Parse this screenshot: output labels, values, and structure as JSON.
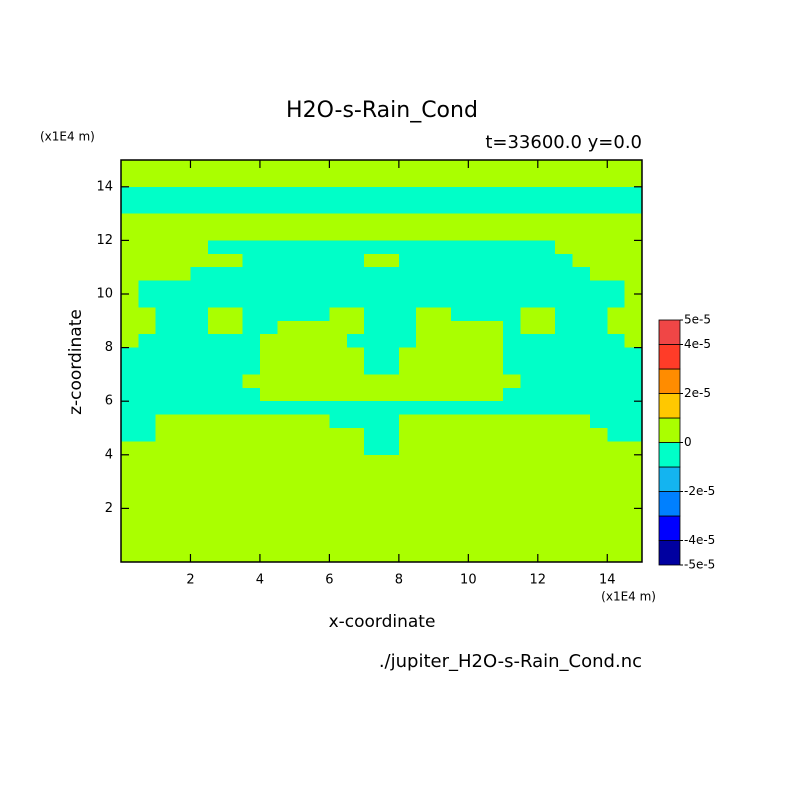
{
  "chart_data": {
    "type": "contour",
    "title": "H2O-s-Rain_Cond",
    "subtitle": "t=33600.0 y=0.0",
    "x_label": "x-coordinate",
    "y_label": "z-coordinate",
    "x_unit": "(x1E4 m)",
    "y_unit": "(x1E4 m)",
    "footer": "./jupiter_H2O-s-Rain_Cond.nc",
    "xlim": [
      0,
      15
    ],
    "ylim": [
      0,
      15
    ],
    "xticks": [
      2,
      4,
      6,
      8,
      10,
      12,
      14
    ],
    "yticks": [
      2,
      4,
      6,
      8,
      10,
      12,
      14
    ],
    "x": [
      0.25,
      0.75,
      1.25,
      1.75,
      2.25,
      2.75,
      3.25,
      3.75,
      4.25,
      4.75,
      5.25,
      5.75,
      6.25,
      6.75,
      7.25,
      7.75,
      8.25,
      8.75,
      9.25,
      9.75,
      10.25,
      10.75,
      11.25,
      11.75,
      12.25,
      12.75,
      13.25,
      13.75,
      14.25,
      14.75
    ],
    "y": [
      14.75,
      14.25,
      13.75,
      13.25,
      12.75,
      12.25,
      11.75,
      11.25,
      10.75,
      10.25,
      9.75,
      9.25,
      8.75,
      8.25,
      7.75,
      7.25,
      6.75,
      6.25,
      5.75,
      5.25,
      4.75,
      4.25,
      3.75,
      3.25,
      2.75,
      2.25,
      1.75,
      1.25,
      0.75,
      0.25
    ],
    "values": [
      [
        5e-06,
        5e-06,
        5e-06,
        5e-06,
        5e-06,
        5e-06,
        5e-06,
        5e-06,
        5e-06,
        5e-06,
        5e-06,
        5e-06,
        5e-06,
        5e-06,
        5e-06,
        5e-06,
        5e-06,
        5e-06,
        5e-06,
        5e-06,
        5e-06,
        5e-06,
        5e-06,
        5e-06,
        5e-06,
        5e-06,
        5e-06,
        5e-06,
        5e-06,
        5e-06
      ],
      [
        5e-06,
        5e-06,
        5e-06,
        5e-06,
        5e-06,
        5e-06,
        5e-06,
        5e-06,
        5e-06,
        5e-06,
        5e-06,
        5e-06,
        5e-06,
        5e-06,
        5e-06,
        5e-06,
        5e-06,
        5e-06,
        5e-06,
        5e-06,
        5e-06,
        5e-06,
        5e-06,
        5e-06,
        5e-06,
        5e-06,
        5e-06,
        5e-06,
        5e-06,
        5e-06
      ],
      [
        -5e-06,
        -5e-06,
        -5e-06,
        -5e-06,
        -5e-06,
        -5e-06,
        -5e-06,
        -5e-06,
        -5e-06,
        -5e-06,
        -5e-06,
        -5e-06,
        -5e-06,
        -5e-06,
        -5e-06,
        -5e-06,
        -5e-06,
        -5e-06,
        -5e-06,
        -5e-06,
        -5e-06,
        -5e-06,
        -5e-06,
        -5e-06,
        -5e-06,
        -5e-06,
        -5e-06,
        -5e-06,
        -5e-06,
        -5e-06
      ],
      [
        -5e-06,
        -5e-06,
        -5e-06,
        -5e-06,
        -5e-06,
        -5e-06,
        -5e-06,
        -5e-06,
        -5e-06,
        -5e-06,
        -5e-06,
        -5e-06,
        -5e-06,
        -5e-06,
        -5e-06,
        -5e-06,
        -5e-06,
        -5e-06,
        -5e-06,
        -5e-06,
        -5e-06,
        -5e-06,
        -5e-06,
        -5e-06,
        -5e-06,
        -5e-06,
        -5e-06,
        -5e-06,
        -5e-06,
        -5e-06
      ],
      [
        5e-06,
        5e-06,
        5e-06,
        5e-06,
        5e-06,
        5e-06,
        5e-06,
        5e-06,
        5e-06,
        5e-06,
        5e-06,
        5e-06,
        5e-06,
        5e-06,
        5e-06,
        5e-06,
        5e-06,
        5e-06,
        5e-06,
        5e-06,
        5e-06,
        5e-06,
        5e-06,
        5e-06,
        5e-06,
        5e-06,
        5e-06,
        5e-06,
        5e-06,
        5e-06
      ],
      [
        5e-06,
        5e-06,
        5e-06,
        5e-06,
        5e-06,
        5e-06,
        5e-06,
        5e-06,
        5e-06,
        5e-06,
        5e-06,
        5e-06,
        5e-06,
        5e-06,
        5e-06,
        5e-06,
        5e-06,
        5e-06,
        5e-06,
        5e-06,
        5e-06,
        5e-06,
        5e-06,
        5e-06,
        5e-06,
        5e-06,
        5e-06,
        5e-06,
        5e-06,
        5e-06
      ],
      [
        5e-06,
        5e-06,
        5e-06,
        5e-06,
        5e-06,
        -5e-06,
        -5e-06,
        -5e-06,
        -5e-06,
        -5e-06,
        -5e-06,
        -5e-06,
        -5e-06,
        -5e-06,
        -5e-06,
        -5e-06,
        -5e-06,
        -5e-06,
        -5e-06,
        -5e-06,
        -5e-06,
        -5e-06,
        -5e-06,
        -5e-06,
        -5e-06,
        5e-06,
        5e-06,
        5e-06,
        5e-06,
        5e-06
      ],
      [
        5e-06,
        5e-06,
        5e-06,
        5e-06,
        5e-06,
        5e-06,
        5e-06,
        -5e-06,
        -5e-06,
        -5e-06,
        -5e-06,
        -5e-06,
        -5e-06,
        -5e-06,
        5e-06,
        5e-06,
        -5e-06,
        -5e-06,
        -5e-06,
        -5e-06,
        -5e-06,
        -5e-06,
        -5e-06,
        -5e-06,
        -5e-06,
        -5e-06,
        5e-06,
        5e-06,
        5e-06,
        5e-06
      ],
      [
        5e-06,
        5e-06,
        5e-06,
        5e-06,
        -5e-06,
        -5e-06,
        -5e-06,
        -5e-06,
        -5e-06,
        -5e-06,
        -5e-06,
        -5e-06,
        -5e-06,
        -5e-06,
        -5e-06,
        -5e-06,
        -5e-06,
        -5e-06,
        -5e-06,
        -5e-06,
        -5e-06,
        -5e-06,
        -5e-06,
        -5e-06,
        -5e-06,
        -5e-06,
        -5e-06,
        5e-06,
        5e-06,
        5e-06
      ],
      [
        5e-06,
        -5e-06,
        -5e-06,
        -5e-06,
        -5e-06,
        -5e-06,
        -5e-06,
        -5e-06,
        -5e-06,
        -5e-06,
        -5e-06,
        -5e-06,
        -5e-06,
        -5e-06,
        -5e-06,
        -5e-06,
        -5e-06,
        -5e-06,
        -5e-06,
        -5e-06,
        -5e-06,
        -5e-06,
        -5e-06,
        -5e-06,
        -5e-06,
        -5e-06,
        -5e-06,
        -5e-06,
        -5e-06,
        5e-06
      ],
      [
        5e-06,
        -5e-06,
        -5e-06,
        -5e-06,
        -5e-06,
        -5e-06,
        -5e-06,
        -5e-06,
        -5e-06,
        -5e-06,
        -5e-06,
        -5e-06,
        -5e-06,
        -5e-06,
        -5e-06,
        -5e-06,
        -5e-06,
        -5e-06,
        -5e-06,
        -5e-06,
        -5e-06,
        -5e-06,
        -5e-06,
        -5e-06,
        -5e-06,
        -5e-06,
        -5e-06,
        -5e-06,
        -5e-06,
        5e-06
      ],
      [
        5e-06,
        5e-06,
        -5e-06,
        -5e-06,
        -5e-06,
        5e-06,
        5e-06,
        -5e-06,
        -5e-06,
        -5e-06,
        -5e-06,
        -5e-06,
        5e-06,
        5e-06,
        -5e-06,
        -5e-06,
        -5e-06,
        5e-06,
        5e-06,
        -5e-06,
        -5e-06,
        -5e-06,
        -5e-06,
        5e-06,
        5e-06,
        -5e-06,
        -5e-06,
        -5e-06,
        5e-06,
        5e-06
      ],
      [
        5e-06,
        5e-06,
        -5e-06,
        -5e-06,
        -5e-06,
        5e-06,
        5e-06,
        -5e-06,
        -5e-06,
        5e-06,
        5e-06,
        5e-06,
        5e-06,
        5e-06,
        -5e-06,
        -5e-06,
        -5e-06,
        5e-06,
        5e-06,
        5e-06,
        5e-06,
        5e-06,
        -5e-06,
        5e-06,
        5e-06,
        -5e-06,
        -5e-06,
        -5e-06,
        5e-06,
        5e-06
      ],
      [
        5e-06,
        -5e-06,
        -5e-06,
        -5e-06,
        -5e-06,
        -5e-06,
        -5e-06,
        -5e-06,
        5e-06,
        5e-06,
        5e-06,
        5e-06,
        5e-06,
        -5e-06,
        -5e-06,
        -5e-06,
        -5e-06,
        5e-06,
        5e-06,
        5e-06,
        5e-06,
        5e-06,
        -5e-06,
        -5e-06,
        -5e-06,
        -5e-06,
        -5e-06,
        -5e-06,
        -5e-06,
        5e-06
      ],
      [
        -5e-06,
        -5e-06,
        -5e-06,
        -5e-06,
        -5e-06,
        -5e-06,
        -5e-06,
        -5e-06,
        5e-06,
        5e-06,
        5e-06,
        5e-06,
        5e-06,
        5e-06,
        -5e-06,
        -5e-06,
        5e-06,
        5e-06,
        5e-06,
        5e-06,
        5e-06,
        5e-06,
        -5e-06,
        -5e-06,
        -5e-06,
        -5e-06,
        -5e-06,
        -5e-06,
        -5e-06,
        -5e-06
      ],
      [
        -5e-06,
        -5e-06,
        -5e-06,
        -5e-06,
        -5e-06,
        -5e-06,
        -5e-06,
        -5e-06,
        5e-06,
        5e-06,
        5e-06,
        5e-06,
        5e-06,
        5e-06,
        -5e-06,
        -5e-06,
        5e-06,
        5e-06,
        5e-06,
        5e-06,
        5e-06,
        5e-06,
        -5e-06,
        -5e-06,
        -5e-06,
        -5e-06,
        -5e-06,
        -5e-06,
        -5e-06,
        -5e-06
      ],
      [
        -5e-06,
        -5e-06,
        -5e-06,
        -5e-06,
        -5e-06,
        -5e-06,
        -5e-06,
        5e-06,
        5e-06,
        5e-06,
        5e-06,
        5e-06,
        5e-06,
        5e-06,
        5e-06,
        5e-06,
        5e-06,
        5e-06,
        5e-06,
        5e-06,
        5e-06,
        5e-06,
        5e-06,
        -5e-06,
        -5e-06,
        -5e-06,
        -5e-06,
        -5e-06,
        -5e-06,
        -5e-06
      ],
      [
        -5e-06,
        -5e-06,
        -5e-06,
        -5e-06,
        -5e-06,
        -5e-06,
        -5e-06,
        -5e-06,
        5e-06,
        5e-06,
        5e-06,
        5e-06,
        5e-06,
        5e-06,
        5e-06,
        5e-06,
        5e-06,
        5e-06,
        5e-06,
        5e-06,
        5e-06,
        5e-06,
        -5e-06,
        -5e-06,
        -5e-06,
        -5e-06,
        -5e-06,
        -5e-06,
        -5e-06,
        -5e-06
      ],
      [
        -5e-06,
        -5e-06,
        -5e-06,
        -5e-06,
        -5e-06,
        -5e-06,
        -5e-06,
        -5e-06,
        -5e-06,
        -5e-06,
        -5e-06,
        -5e-06,
        -5e-06,
        -5e-06,
        -5e-06,
        -5e-06,
        -5e-06,
        -5e-06,
        -5e-06,
        -5e-06,
        -5e-06,
        -5e-06,
        -5e-06,
        -5e-06,
        -5e-06,
        -5e-06,
        -5e-06,
        -5e-06,
        -5e-06,
        -5e-06
      ],
      [
        -5e-06,
        -5e-06,
        5e-06,
        5e-06,
        5e-06,
        5e-06,
        5e-06,
        5e-06,
        5e-06,
        5e-06,
        5e-06,
        5e-06,
        -5e-06,
        -5e-06,
        -5e-06,
        -5e-06,
        5e-06,
        5e-06,
        5e-06,
        5e-06,
        5e-06,
        5e-06,
        5e-06,
        5e-06,
        5e-06,
        5e-06,
        5e-06,
        -5e-06,
        -5e-06,
        -5e-06
      ],
      [
        -5e-06,
        -5e-06,
        5e-06,
        5e-06,
        5e-06,
        5e-06,
        5e-06,
        5e-06,
        5e-06,
        5e-06,
        5e-06,
        5e-06,
        5e-06,
        5e-06,
        -5e-06,
        -5e-06,
        5e-06,
        5e-06,
        5e-06,
        5e-06,
        5e-06,
        5e-06,
        5e-06,
        5e-06,
        5e-06,
        5e-06,
        5e-06,
        5e-06,
        -5e-06,
        -5e-06
      ],
      [
        5e-06,
        5e-06,
        5e-06,
        5e-06,
        5e-06,
        5e-06,
        5e-06,
        5e-06,
        5e-06,
        5e-06,
        5e-06,
        5e-06,
        5e-06,
        5e-06,
        -5e-06,
        -5e-06,
        5e-06,
        5e-06,
        5e-06,
        5e-06,
        5e-06,
        5e-06,
        5e-06,
        5e-06,
        5e-06,
        5e-06,
        5e-06,
        5e-06,
        5e-06,
        5e-06
      ],
      [
        5e-06,
        5e-06,
        5e-06,
        5e-06,
        5e-06,
        5e-06,
        5e-06,
        5e-06,
        5e-06,
        5e-06,
        5e-06,
        5e-06,
        5e-06,
        5e-06,
        5e-06,
        5e-06,
        5e-06,
        5e-06,
        5e-06,
        5e-06,
        5e-06,
        5e-06,
        5e-06,
        5e-06,
        5e-06,
        5e-06,
        5e-06,
        5e-06,
        5e-06,
        5e-06
      ],
      [
        5e-06,
        5e-06,
        5e-06,
        5e-06,
        5e-06,
        5e-06,
        5e-06,
        5e-06,
        5e-06,
        5e-06,
        5e-06,
        5e-06,
        5e-06,
        5e-06,
        5e-06,
        5e-06,
        5e-06,
        5e-06,
        5e-06,
        5e-06,
        5e-06,
        5e-06,
        5e-06,
        5e-06,
        5e-06,
        5e-06,
        5e-06,
        5e-06,
        5e-06,
        5e-06
      ],
      [
        5e-06,
        5e-06,
        5e-06,
        5e-06,
        5e-06,
        5e-06,
        5e-06,
        5e-06,
        5e-06,
        5e-06,
        5e-06,
        5e-06,
        5e-06,
        5e-06,
        5e-06,
        5e-06,
        5e-06,
        5e-06,
        5e-06,
        5e-06,
        5e-06,
        5e-06,
        5e-06,
        5e-06,
        5e-06,
        5e-06,
        5e-06,
        5e-06,
        5e-06,
        5e-06
      ],
      [
        5e-06,
        5e-06,
        5e-06,
        5e-06,
        5e-06,
        5e-06,
        5e-06,
        5e-06,
        5e-06,
        5e-06,
        5e-06,
        5e-06,
        5e-06,
        5e-06,
        5e-06,
        5e-06,
        5e-06,
        5e-06,
        5e-06,
        5e-06,
        5e-06,
        5e-06,
        5e-06,
        5e-06,
        5e-06,
        5e-06,
        5e-06,
        5e-06,
        5e-06,
        5e-06
      ],
      [
        5e-06,
        5e-06,
        5e-06,
        5e-06,
        5e-06,
        5e-06,
        5e-06,
        5e-06,
        5e-06,
        5e-06,
        5e-06,
        5e-06,
        5e-06,
        5e-06,
        5e-06,
        5e-06,
        5e-06,
        5e-06,
        5e-06,
        5e-06,
        5e-06,
        5e-06,
        5e-06,
        5e-06,
        5e-06,
        5e-06,
        5e-06,
        5e-06,
        5e-06,
        5e-06
      ],
      [
        5e-06,
        5e-06,
        5e-06,
        5e-06,
        5e-06,
        5e-06,
        5e-06,
        5e-06,
        5e-06,
        5e-06,
        5e-06,
        5e-06,
        5e-06,
        5e-06,
        5e-06,
        5e-06,
        5e-06,
        5e-06,
        5e-06,
        5e-06,
        5e-06,
        5e-06,
        5e-06,
        5e-06,
        5e-06,
        5e-06,
        5e-06,
        5e-06,
        5e-06,
        5e-06
      ],
      [
        5e-06,
        5e-06,
        5e-06,
        5e-06,
        5e-06,
        5e-06,
        5e-06,
        5e-06,
        5e-06,
        5e-06,
        5e-06,
        5e-06,
        5e-06,
        5e-06,
        5e-06,
        5e-06,
        5e-06,
        5e-06,
        5e-06,
        5e-06,
        5e-06,
        5e-06,
        5e-06,
        5e-06,
        5e-06,
        5e-06,
        5e-06,
        5e-06,
        5e-06,
        5e-06
      ],
      [
        5e-06,
        5e-06,
        5e-06,
        5e-06,
        5e-06,
        5e-06,
        5e-06,
        5e-06,
        5e-06,
        5e-06,
        5e-06,
        5e-06,
        5e-06,
        5e-06,
        5e-06,
        5e-06,
        5e-06,
        5e-06,
        5e-06,
        5e-06,
        5e-06,
        5e-06,
        5e-06,
        5e-06,
        5e-06,
        5e-06,
        5e-06,
        5e-06,
        5e-06,
        5e-06
      ]
    ],
    "levels": [
      -5e-05,
      -4e-05,
      -3e-05,
      -2e-05,
      -1e-05,
      0,
      1e-05,
      2e-05,
      3e-05,
      4e-05,
      5e-05
    ],
    "colors": [
      "#0000a0",
      "#0000ff",
      "#0080ff",
      "#14b4f0",
      "#00ffc8",
      "#aaff00",
      "#ffc800",
      "#ff8c00",
      "#ff3c28",
      "#f04646"
    ],
    "colorbar_ticks": [
      {
        "value": 5e-05,
        "label": "5e-5"
      },
      {
        "value": 4e-05,
        "label": "4e-5"
      },
      {
        "value": 2e-05,
        "label": "2e-5"
      },
      0,
      {
        "value": -2e-05,
        "label": "-2e-5"
      },
      {
        "value": -4e-05,
        "label": "-4e-5"
      },
      {
        "value": -5e-05,
        "label": "-5e-5"
      }
    ]
  }
}
